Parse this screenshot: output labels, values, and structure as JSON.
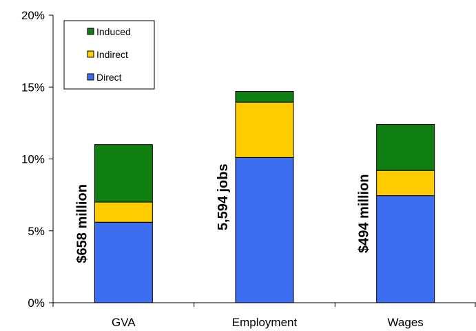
{
  "chart_data": {
    "type": "bar",
    "stacked": true,
    "categories": [
      "GVA",
      "Employment",
      "Wages"
    ],
    "series": [
      {
        "name": "Direct",
        "values": [
          5.6,
          10.1,
          7.45
        ],
        "color": "#3d6ef2"
      },
      {
        "name": "Indirect",
        "values": [
          1.4,
          3.85,
          1.75
        ],
        "color": "#ffcc00"
      },
      {
        "name": "Induced",
        "values": [
          4.0,
          0.75,
          3.2
        ],
        "color": "#0e7f10"
      }
    ],
    "annotations": [
      "$658 million",
      "5,594 jobs",
      "$494 million"
    ],
    "y_ticks": [
      "0%",
      "5%",
      "10%",
      "15%",
      "20%"
    ],
    "ylim": [
      0,
      20
    ],
    "legend": {
      "placement": "top-left",
      "order": [
        "Induced",
        "Indirect",
        "Direct"
      ]
    },
    "grid": false
  }
}
